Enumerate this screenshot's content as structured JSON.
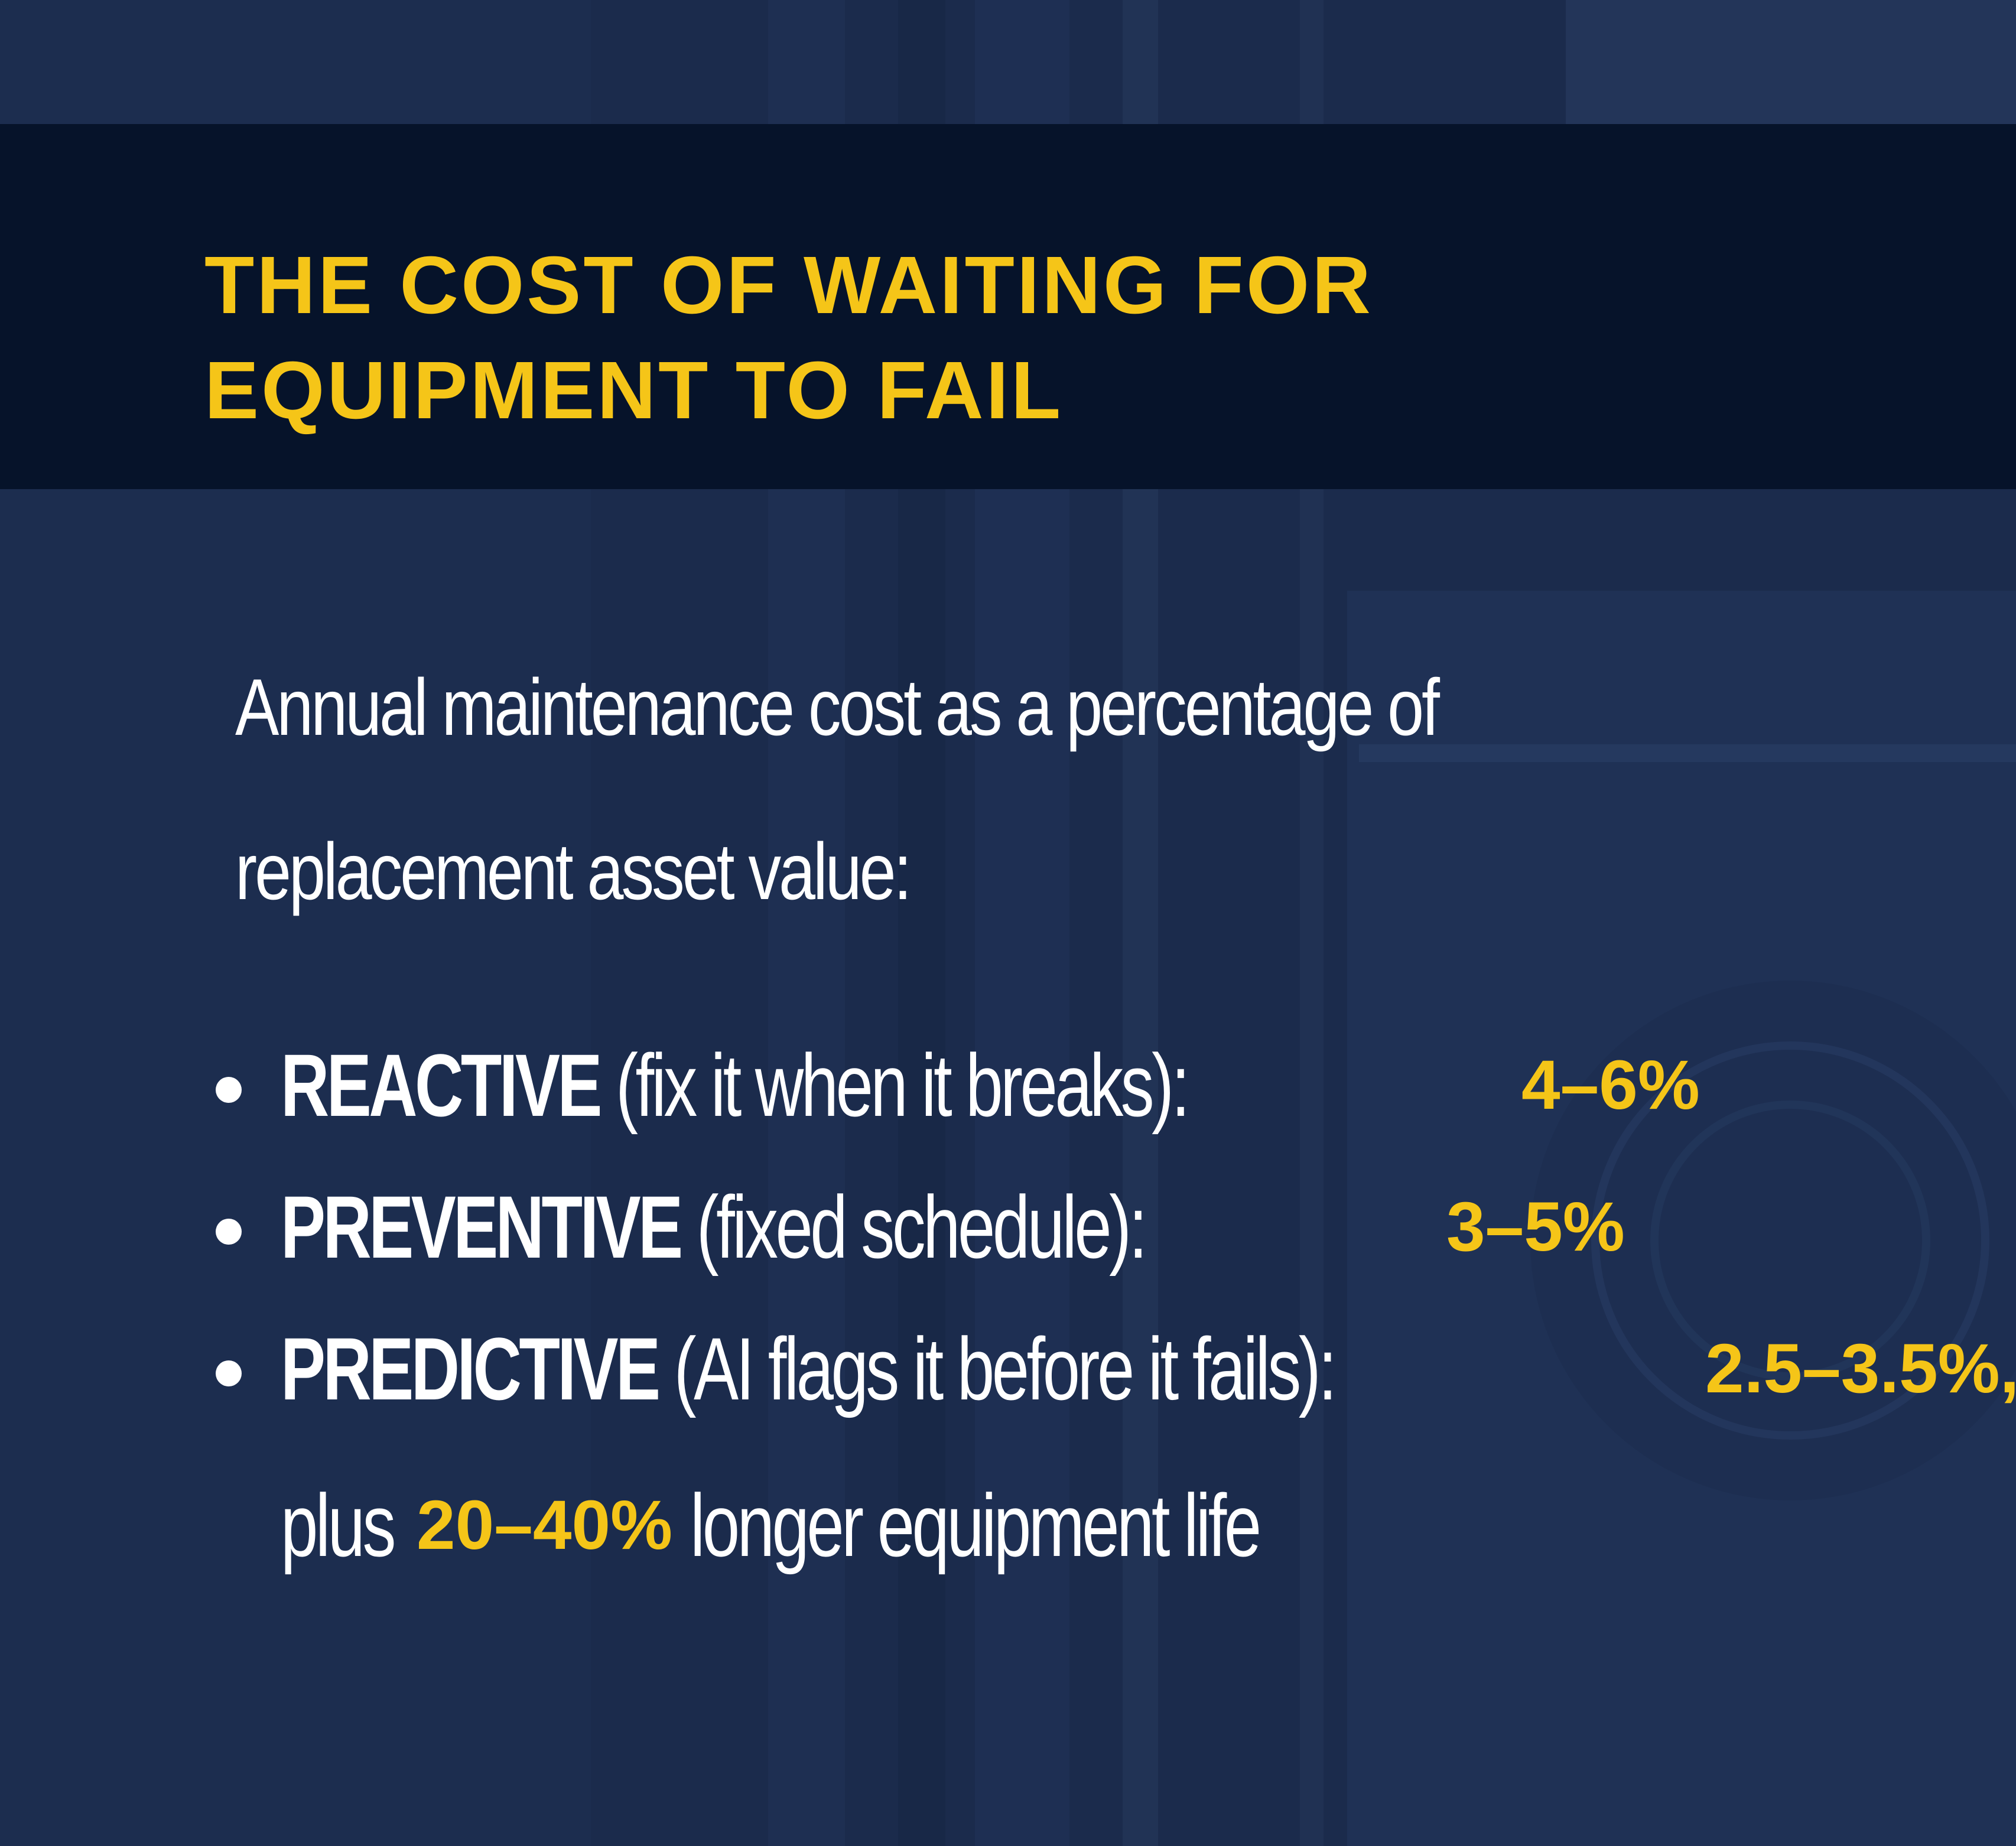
{
  "colors": {
    "background": "#1a2a4a",
    "header_band": "#06132a",
    "accent": "#f5c518",
    "text": "#ffffff"
  },
  "header": {
    "title_line1": "THE COST OF WAITING FOR",
    "title_line2": "EQUIPMENT TO FAIL"
  },
  "intro": {
    "line1": "Annual maintenance cost as a percentage of",
    "line2": "replacement asset value:"
  },
  "items": [
    {
      "term": "REACTIVE",
      "description": " (fix it when it breaks): ",
      "value": "4–6%"
    },
    {
      "term": "PREVENTIVE",
      "description": " (fixed schedule): ",
      "value": "3–5%"
    },
    {
      "term": "PREDICTIVE",
      "description": " (AI flags it before it fails): ",
      "value": "2.5–3.5%,"
    }
  ],
  "continuation": {
    "prefix": "plus ",
    "value": "20–40%",
    "suffix": "longer equipment life"
  }
}
